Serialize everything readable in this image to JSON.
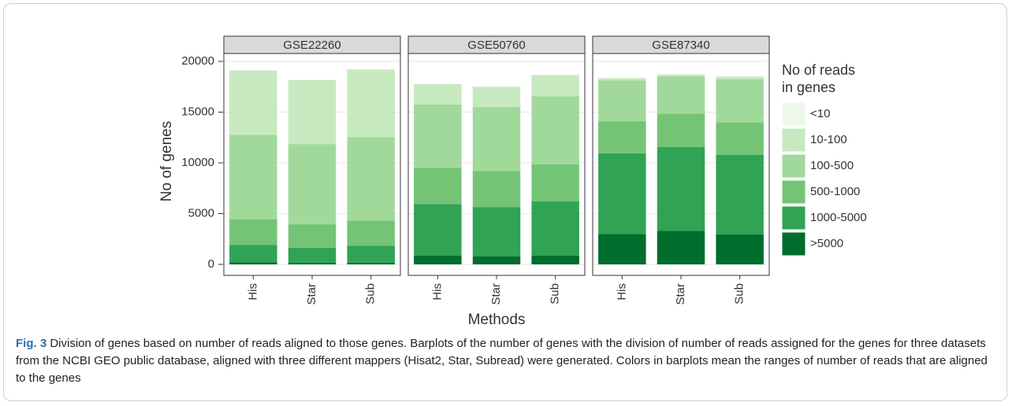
{
  "chart_data": {
    "type": "bar",
    "stacked": true,
    "y_label": "No of genes",
    "x_label": "Methods",
    "legend_title": [
      "No of reads",
      "in genes"
    ],
    "ylim": [
      0,
      20000
    ],
    "yticks": [
      0,
      5000,
      10000,
      15000,
      20000
    ],
    "grid": true,
    "facets": [
      {
        "title": "GSE22260",
        "categories": [
          "His",
          "Star",
          "Sub"
        ],
        "series": [
          {
            "name": ">5000",
            "color": "#006d2c",
            "values": [
              200,
              150,
              150
            ]
          },
          {
            "name": "1000-5000",
            "color": "#31a354",
            "values": [
              1700,
              1500,
              1700
            ]
          },
          {
            "name": "500-1000",
            "color": "#74c476",
            "values": [
              2550,
              2300,
              2450
            ]
          },
          {
            "name": "100-500",
            "color": "#a1d99b",
            "values": [
              8300,
              7900,
              8250
            ]
          },
          {
            "name": "10-100",
            "color": "#c7e9c0",
            "values": [
              6350,
              6300,
              6650
            ]
          },
          {
            "name": "<10",
            "color": "#edf8e9",
            "values": [
              50,
              50,
              50
            ]
          }
        ]
      },
      {
        "title": "GSE50760",
        "categories": [
          "His",
          "Star",
          "Sub"
        ],
        "series": [
          {
            "name": ">5000",
            "color": "#006d2c",
            "values": [
              850,
              800,
              850
            ]
          },
          {
            "name": "1000-5000",
            "color": "#31a354",
            "values": [
              5100,
              4850,
              5350
            ]
          },
          {
            "name": "500-1000",
            "color": "#74c476",
            "values": [
              3550,
              3550,
              3650
            ]
          },
          {
            "name": "100-500",
            "color": "#a1d99b",
            "values": [
              6250,
              6300,
              6700
            ]
          },
          {
            "name": "10-100",
            "color": "#c7e9c0",
            "values": [
              2000,
              2000,
              2100
            ]
          },
          {
            "name": "<10",
            "color": "#edf8e9",
            "values": [
              50,
              50,
              50
            ]
          }
        ]
      },
      {
        "title": "GSE87340",
        "categories": [
          "His",
          "Star",
          "Sub"
        ],
        "series": [
          {
            "name": ">5000",
            "color": "#006d2c",
            "values": [
              3000,
              3300,
              2950
            ]
          },
          {
            "name": "1000-5000",
            "color": "#31a354",
            "values": [
              7950,
              8250,
              7850
            ]
          },
          {
            "name": "500-1000",
            "color": "#74c476",
            "values": [
              3150,
              3300,
              3200
            ]
          },
          {
            "name": "100-500",
            "color": "#a1d99b",
            "values": [
              4000,
              3700,
              4250
            ]
          },
          {
            "name": "10-100",
            "color": "#c7e9c0",
            "values": [
              250,
              150,
              250
            ]
          },
          {
            "name": "<10",
            "color": "#edf8e9",
            "values": [
              50,
              50,
              50
            ]
          }
        ]
      }
    ]
  },
  "caption": {
    "label": "Fig. 3",
    "text": "Division of genes based on number of reads aligned to those genes. Barplots of the number of genes with the division of number of reads assigned for the genes for three datasets from the NCBI GEO public database, aligned with three different mappers (Hisat2, Star, Subread) were generated. Colors in barplots mean the ranges of number of reads that are aligned to the genes"
  }
}
